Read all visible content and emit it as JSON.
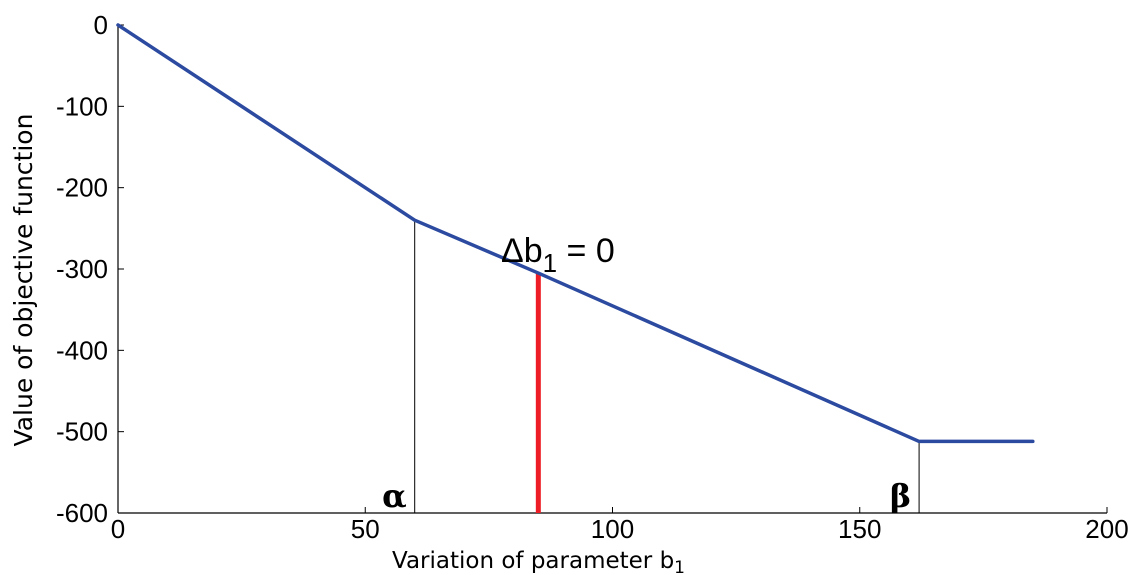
{
  "chart_data": {
    "type": "line",
    "xlabel": "Variation of parameter b",
    "xlabel_subscript": "1",
    "ylabel": "Value of objective function",
    "xlim": [
      0,
      200
    ],
    "ylim": [
      -600,
      0
    ],
    "x_ticks": [
      0,
      50,
      100,
      150,
      200
    ],
    "y_ticks": [
      0,
      -100,
      -200,
      -300,
      -400,
      -500,
      -600
    ],
    "grid": false,
    "series": [
      {
        "color": "#2b4aa0",
        "x": [
          0,
          60,
          85,
          162,
          185
        ],
        "y": [
          0,
          -240,
          -305,
          -512,
          -512
        ]
      }
    ],
    "markers": [
      {
        "x": 60,
        "y_top": -240,
        "label": "α",
        "color": "#000000"
      },
      {
        "x": 162,
        "y_top": -512,
        "label": "β",
        "color": "#000000"
      },
      {
        "x": 85,
        "y_top": -305,
        "color": "#ee1c24"
      }
    ],
    "annotation": {
      "text": "Δb",
      "subscript": "1",
      "suffix": " = 0",
      "x": 85
    }
  }
}
